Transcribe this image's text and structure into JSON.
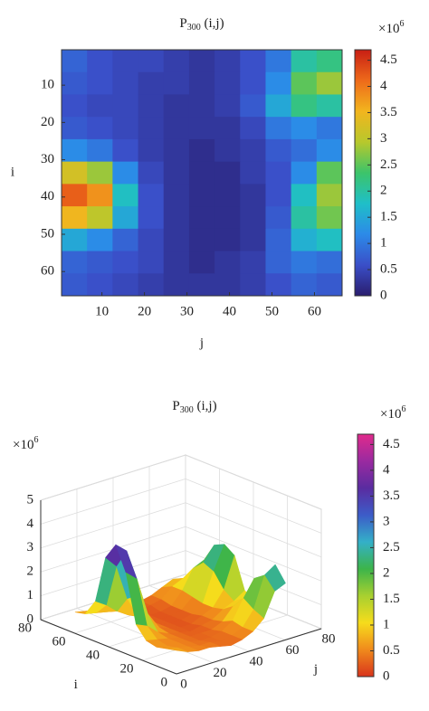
{
  "chart_data": [
    {
      "type": "heatmap",
      "title": {
        "base": "P",
        "sub": "300",
        "rest": " (i,j)"
      },
      "xlabel": "j",
      "ylabel": "i",
      "x": [
        3.5,
        9.5,
        15.5,
        21.5,
        27.5,
        33.5,
        39.5,
        45.5,
        51.5,
        57.5,
        63.5
      ],
      "y": [
        3.5,
        9.5,
        15.5,
        21.5,
        27.5,
        33.5,
        39.5,
        45.5,
        51.5,
        57.5,
        63.5
      ],
      "z": [
        [
          0.8,
          0.6,
          0.5,
          0.5,
          0.4,
          0.3,
          0.4,
          0.6,
          1.0,
          2.0,
          2.2
        ],
        [
          0.7,
          0.6,
          0.5,
          0.4,
          0.4,
          0.3,
          0.4,
          0.6,
          1.2,
          2.5,
          2.8
        ],
        [
          0.6,
          0.5,
          0.5,
          0.4,
          0.3,
          0.3,
          0.4,
          0.7,
          1.5,
          2.2,
          2.0
        ],
        [
          0.7,
          0.6,
          0.5,
          0.4,
          0.3,
          0.3,
          0.3,
          0.5,
          1.0,
          1.2,
          1.0
        ],
        [
          1.2,
          1.0,
          0.6,
          0.4,
          0.3,
          0.2,
          0.3,
          0.4,
          0.7,
          0.9,
          1.2
        ],
        [
          3.2,
          2.8,
          1.2,
          0.5,
          0.3,
          0.2,
          0.2,
          0.4,
          0.6,
          1.2,
          2.5
        ],
        [
          4.2,
          3.8,
          1.8,
          0.6,
          0.3,
          0.2,
          0.2,
          0.3,
          0.6,
          1.8,
          2.8
        ],
        [
          3.5,
          3.0,
          1.5,
          0.6,
          0.3,
          0.2,
          0.2,
          0.3,
          0.7,
          2.0,
          2.6
        ],
        [
          1.5,
          1.2,
          0.8,
          0.5,
          0.3,
          0.2,
          0.2,
          0.3,
          0.8,
          1.6,
          1.8
        ],
        [
          0.8,
          0.7,
          0.6,
          0.5,
          0.3,
          0.2,
          0.3,
          0.4,
          0.8,
          1.0,
          0.9
        ],
        [
          0.7,
          0.6,
          0.5,
          0.4,
          0.3,
          0.3,
          0.3,
          0.4,
          0.6,
          0.8,
          0.7
        ]
      ],
      "xlim": [
        0.5,
        66.5
      ],
      "ylim": [
        0.5,
        66.5
      ],
      "y_reversed": true,
      "xticks": [
        10,
        20,
        30,
        40,
        50,
        60
      ],
      "yticks": [
        10,
        20,
        30,
        40,
        50,
        60
      ],
      "clim": [
        0,
        4.7
      ],
      "cticks": [
        0,
        0.5,
        1,
        1.5,
        2,
        2.5,
        3,
        3.5,
        4,
        4.5
      ],
      "colorbar_multiplier": {
        "base": "×10",
        "exp": "6"
      },
      "colormap": [
        "#2a1d6e",
        "#3a4fc8",
        "#2c8ae8",
        "#1fbfc8",
        "#3cc46a",
        "#b8c82c",
        "#f2b51e",
        "#ee6a1a",
        "#c81e14"
      ]
    },
    {
      "type": "surface3d",
      "title": {
        "base": "P",
        "sub": "300",
        "rest": " (i,j)"
      },
      "xlabel": "j",
      "ylabel": "i",
      "x": [
        3.5,
        9.5,
        15.5,
        21.5,
        27.5,
        33.5,
        39.5,
        45.5,
        51.5,
        57.5,
        63.5
      ],
      "y": [
        3.5,
        9.5,
        15.5,
        21.5,
        27.5,
        33.5,
        39.5,
        45.5,
        51.5,
        57.5,
        63.5
      ],
      "z": [
        [
          0.8,
          0.6,
          0.5,
          0.5,
          0.4,
          0.3,
          0.4,
          0.6,
          1.0,
          2.0,
          2.2
        ],
        [
          0.7,
          0.6,
          0.5,
          0.4,
          0.4,
          0.3,
          0.4,
          0.6,
          1.2,
          2.5,
          2.8
        ],
        [
          0.6,
          0.5,
          0.5,
          0.4,
          0.3,
          0.3,
          0.4,
          0.7,
          1.5,
          2.2,
          2.0
        ],
        [
          0.7,
          0.6,
          0.5,
          0.4,
          0.3,
          0.3,
          0.3,
          0.5,
          1.0,
          1.2,
          1.0
        ],
        [
          1.2,
          1.0,
          0.6,
          0.4,
          0.3,
          0.2,
          0.3,
          0.4,
          0.7,
          0.9,
          1.2
        ],
        [
          3.2,
          2.8,
          1.2,
          0.5,
          0.3,
          0.2,
          0.2,
          0.4,
          0.6,
          1.2,
          2.5
        ],
        [
          4.2,
          3.8,
          1.8,
          0.6,
          0.3,
          0.2,
          0.2,
          0.3,
          0.6,
          1.8,
          2.8
        ],
        [
          3.5,
          3.0,
          1.5,
          0.6,
          0.3,
          0.2,
          0.2,
          0.3,
          0.7,
          2.0,
          2.6
        ],
        [
          1.5,
          1.2,
          0.8,
          0.5,
          0.3,
          0.2,
          0.2,
          0.3,
          0.8,
          1.6,
          1.8
        ],
        [
          0.8,
          0.7,
          0.6,
          0.5,
          0.3,
          0.2,
          0.3,
          0.4,
          0.8,
          1.0,
          0.9
        ],
        [
          0.7,
          0.6,
          0.5,
          0.4,
          0.3,
          0.3,
          0.3,
          0.4,
          0.6,
          0.8,
          0.7
        ]
      ],
      "xlim": [
        0,
        80
      ],
      "ylim": [
        0,
        80
      ],
      "zlim": [
        0,
        5
      ],
      "xticks": [
        0,
        20,
        40,
        60,
        80
      ],
      "yticks": [
        0,
        20,
        40,
        60,
        80
      ],
      "zticks": [
        0,
        1,
        2,
        3,
        4,
        5
      ],
      "zlabel_multiplier": {
        "base": "×10",
        "exp": "6"
      },
      "clim": [
        0,
        4.7
      ],
      "cticks": [
        0,
        0.5,
        1,
        1.5,
        2,
        2.5,
        3,
        3.5,
        4,
        4.5
      ],
      "colorbar_multiplier": {
        "base": "×10",
        "exp": "6"
      },
      "colormap": [
        "#d8341c",
        "#f08a1c",
        "#f6dc1c",
        "#a8d030",
        "#3cb44a",
        "#34b0c8",
        "#3c5cc8",
        "#5a2ca0",
        "#9a2aa0",
        "#e02a8c"
      ]
    }
  ]
}
